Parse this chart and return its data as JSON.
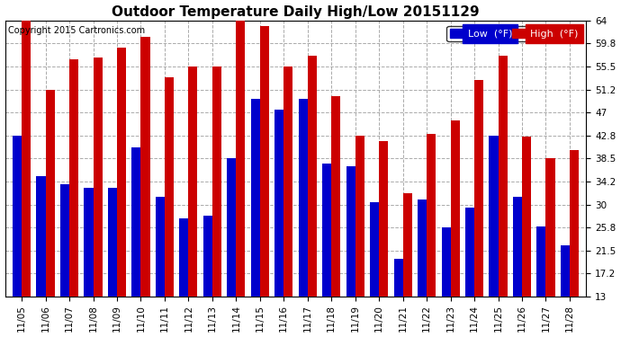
{
  "title": "Outdoor Temperature Daily High/Low 20151129",
  "copyright": "Copyright 2015 Cartronics.com",
  "legend_low": "Low  (°F)",
  "legend_high": "High  (°F)",
  "dates": [
    "11/05",
    "11/06",
    "11/07",
    "11/08",
    "11/09",
    "11/10",
    "11/11",
    "11/12",
    "11/13",
    "11/14",
    "11/15",
    "11/16",
    "11/17",
    "11/18",
    "11/19",
    "11/20",
    "11/21",
    "11/22",
    "11/23",
    "11/24",
    "11/25",
    "11/26",
    "11/27",
    "11/28"
  ],
  "high": [
    64.0,
    51.2,
    56.8,
    57.2,
    59.0,
    61.0,
    53.6,
    55.5,
    55.5,
    64.0,
    63.0,
    55.5,
    57.5,
    50.0,
    42.8,
    41.8,
    32.0,
    43.0,
    45.5,
    53.0,
    57.5,
    42.5,
    38.5,
    40.0
  ],
  "low": [
    42.8,
    35.2,
    33.8,
    33.0,
    33.0,
    40.5,
    31.5,
    27.5,
    28.0,
    38.5,
    49.5,
    47.5,
    49.5,
    37.5,
    37.0,
    30.5,
    20.0,
    31.0,
    25.8,
    29.5,
    42.8,
    31.5,
    26.0,
    22.5
  ],
  "ylim": [
    13.0,
    64.0
  ],
  "yticks": [
    13.0,
    17.2,
    21.5,
    25.8,
    30.0,
    34.2,
    38.5,
    42.8,
    47.0,
    51.2,
    55.5,
    59.8,
    64.0
  ],
  "bar_width": 0.38,
  "low_color": "#0000cc",
  "high_color": "#cc0000",
  "bg_color": "#ffffff",
  "plot_bg_color": "#ffffff",
  "grid_color": "#aaaaaa",
  "title_fontsize": 11,
  "copyright_fontsize": 7,
  "tick_fontsize": 7.5,
  "legend_fontsize": 8
}
